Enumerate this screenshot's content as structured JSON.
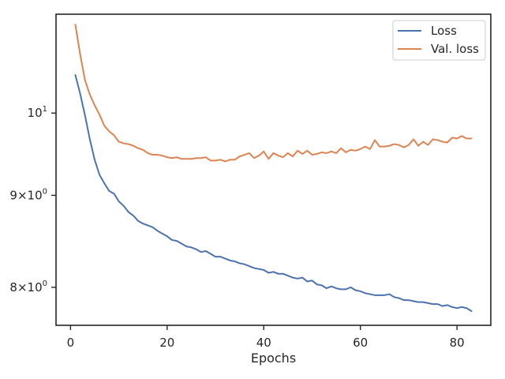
{
  "chart_data": {
    "type": "line",
    "title": "",
    "xlabel": "Epochs",
    "ylabel": "",
    "yscale": "log",
    "xlim": [
      -3,
      87
    ],
    "ylim": [
      7.62,
      11.35
    ],
    "grid": false,
    "legend_position": "top-right",
    "x_ticks": [
      {
        "value": 0,
        "label": "0"
      },
      {
        "value": 20,
        "label": "20"
      },
      {
        "value": 40,
        "label": "40"
      },
      {
        "value": 60,
        "label": "60"
      },
      {
        "value": 80,
        "label": "80"
      }
    ],
    "y_ticks": [
      {
        "value": 8,
        "base": "8",
        "exp": "0"
      },
      {
        "value": 9,
        "base": "9",
        "exp": "0"
      },
      {
        "value": 10,
        "base": "10",
        "exp": "1"
      }
    ],
    "x": [
      1,
      2,
      3,
      4,
      5,
      6,
      7,
      8,
      9,
      10,
      11,
      12,
      13,
      14,
      15,
      16,
      17,
      18,
      19,
      20,
      21,
      22,
      23,
      24,
      25,
      26,
      27,
      28,
      29,
      30,
      31,
      32,
      33,
      34,
      35,
      36,
      37,
      38,
      39,
      40,
      41,
      42,
      43,
      44,
      45,
      46,
      47,
      48,
      49,
      50,
      51,
      52,
      53,
      54,
      55,
      56,
      57,
      58,
      59,
      60,
      61,
      62,
      63,
      64,
      65,
      66,
      67,
      68,
      69,
      70,
      71,
      72,
      73,
      74,
      75,
      76,
      77,
      78,
      79,
      80,
      81,
      82,
      83
    ],
    "series": [
      {
        "name": "Loss",
        "color": "#4c72b0",
        "values": [
          10.5,
          10.25,
          9.97,
          9.67,
          9.42,
          9.24,
          9.14,
          9.05,
          9.02,
          8.93,
          8.88,
          8.81,
          8.77,
          8.71,
          8.68,
          8.66,
          8.64,
          8.6,
          8.57,
          8.54,
          8.5,
          8.49,
          8.46,
          8.43,
          8.42,
          8.4,
          8.37,
          8.38,
          8.35,
          8.32,
          8.32,
          8.3,
          8.28,
          8.27,
          8.25,
          8.24,
          8.22,
          8.2,
          8.19,
          8.18,
          8.15,
          8.16,
          8.14,
          8.14,
          8.12,
          8.1,
          8.09,
          8.1,
          8.06,
          8.07,
          8.03,
          8.02,
          7.99,
          8.01,
          7.99,
          7.98,
          7.98,
          8.0,
          7.97,
          7.96,
          7.94,
          7.93,
          7.92,
          7.92,
          7.92,
          7.93,
          7.9,
          7.89,
          7.87,
          7.87,
          7.86,
          7.85,
          7.85,
          7.84,
          7.83,
          7.83,
          7.81,
          7.82,
          7.8,
          7.79,
          7.8,
          7.79,
          7.76
        ]
      },
      {
        "name": "Val. loss",
        "color": "#dd8452",
        "values": [
          11.2,
          10.78,
          10.43,
          10.24,
          10.1,
          9.98,
          9.84,
          9.77,
          9.72,
          9.64,
          9.62,
          9.61,
          9.59,
          9.56,
          9.54,
          9.5,
          9.48,
          9.48,
          9.47,
          9.45,
          9.44,
          9.45,
          9.43,
          9.43,
          9.43,
          9.44,
          9.44,
          9.45,
          9.41,
          9.41,
          9.42,
          9.4,
          9.42,
          9.42,
          9.46,
          9.48,
          9.5,
          9.44,
          9.47,
          9.52,
          9.43,
          9.5,
          9.47,
          9.45,
          9.5,
          9.46,
          9.53,
          9.49,
          9.53,
          9.48,
          9.49,
          9.51,
          9.5,
          9.52,
          9.5,
          9.56,
          9.51,
          9.54,
          9.53,
          9.55,
          9.58,
          9.55,
          9.66,
          9.58,
          9.58,
          9.59,
          9.61,
          9.6,
          9.57,
          9.6,
          9.67,
          9.59,
          9.64,
          9.6,
          9.67,
          9.66,
          9.64,
          9.63,
          9.69,
          9.68,
          9.71,
          9.68,
          9.68
        ]
      }
    ]
  }
}
